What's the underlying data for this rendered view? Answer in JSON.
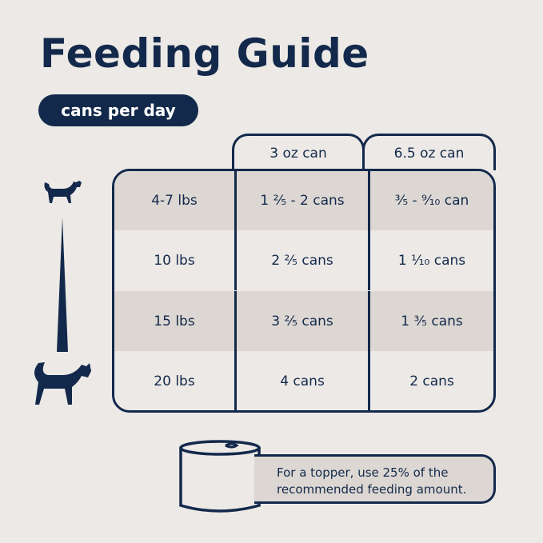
{
  "title": "Feeding Guide",
  "subtitle": "cans per day",
  "columns": [
    "3 oz can",
    "6.5 oz can"
  ],
  "rows": [
    {
      "weight": "4-7 lbs",
      "oz3": "1 ²⁄₅ - 2 cans",
      "oz65": "³⁄₅ - ⁹⁄₁₀ can",
      "shaded": true
    },
    {
      "weight": "10 lbs",
      "oz3": "2 ²⁄₅ cans",
      "oz65": "1 ¹⁄₁₀ cans",
      "shaded": false
    },
    {
      "weight": "15 lbs",
      "oz3": "3 ²⁄₅ cans",
      "oz65": "1 ³⁄₅ cans",
      "shaded": true
    },
    {
      "weight": "20 lbs",
      "oz3": "4 cans",
      "oz65": "2 cans",
      "shaded": false
    }
  ],
  "note": "For a topper, use 25% of the recommended feeding amount.",
  "colors": {
    "navy": "#13294b",
    "background": "#ece9e6",
    "shade": "#dcd7d2"
  },
  "icons": [
    "small-cat-icon",
    "weight-scale-wedge-icon",
    "large-cat-icon",
    "can-icon"
  ]
}
